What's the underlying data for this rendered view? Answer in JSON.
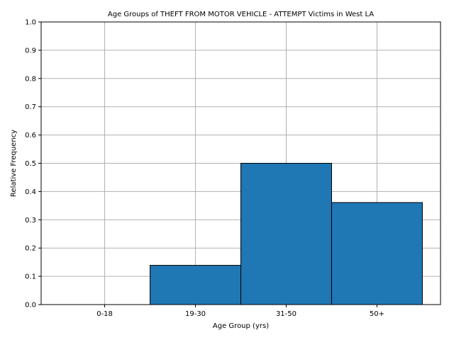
{
  "chart_data": {
    "type": "bar",
    "title": "Age Groups of THEFT FROM MOTOR VEHICLE - ATTEMPT Victims in West LA",
    "xlabel": "Age Group (yrs)",
    "ylabel": "Relative Frequency",
    "categories": [
      "0-18",
      "19-30",
      "31-50",
      "50+"
    ],
    "values": [
      0.0,
      0.1389,
      0.5,
      0.3611
    ],
    "ylim": [
      0,
      1.0
    ],
    "yticks": [
      "0.0",
      "0.1",
      "0.2",
      "0.3",
      "0.4",
      "0.5",
      "0.6",
      "0.7",
      "0.8",
      "0.9",
      "1.0"
    ],
    "grid": true,
    "bar_color": "#1f77b4",
    "edge_color": "#000000"
  }
}
